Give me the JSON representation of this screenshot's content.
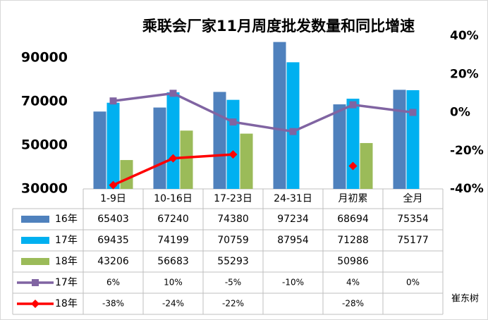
{
  "chart_data": {
    "type": "bar",
    "title": "乘联会厂家11月周度批发数量和同比增速",
    "categories": [
      "1-9日",
      "10-16日",
      "17-23日",
      "24-31日",
      "月初累",
      "全月"
    ],
    "series": [
      {
        "name": "16年",
        "type": "bar",
        "color": "#4f81bd",
        "values": [
          65403,
          67240,
          74380,
          97234,
          68694,
          75354
        ]
      },
      {
        "name": "17年",
        "type": "bar",
        "color": "#00b0f0",
        "values": [
          69435,
          74199,
          70759,
          87954,
          71288,
          75177
        ]
      },
      {
        "name": "18年",
        "type": "bar",
        "color": "#9bbb59",
        "values": [
          43206,
          56683,
          55293,
          null,
          50986,
          null
        ]
      },
      {
        "name": "17年",
        "type": "line",
        "axis": "y2",
        "marker": "square",
        "color": "#8064a2",
        "values": [
          6,
          10,
          -5,
          -10,
          4,
          0
        ],
        "value_labels": [
          "6%",
          "10%",
          "-5%",
          "-10%",
          "4%",
          "0%"
        ]
      },
      {
        "name": "18年",
        "type": "line",
        "axis": "y2",
        "marker": "diamond",
        "color": "#ff0000",
        "values": [
          -38,
          -24,
          -22,
          null,
          -28,
          null
        ],
        "value_labels": [
          "-38%",
          "-24%",
          "-22%",
          null,
          "-28%",
          null
        ]
      }
    ],
    "ylim": [
      30000,
      100000
    ],
    "yticks": [
      30000,
      50000,
      70000,
      90000
    ],
    "y2lim": [
      -40,
      40
    ],
    "y2ticks": [
      {
        "value": -40,
        "label": "-40%"
      },
      {
        "value": -20,
        "label": "-20%"
      },
      {
        "value": 0,
        "label": "0%"
      },
      {
        "value": 20,
        "label": "20%"
      },
      {
        "value": 40,
        "label": "40%"
      }
    ],
    "watermark": "崔东树"
  }
}
